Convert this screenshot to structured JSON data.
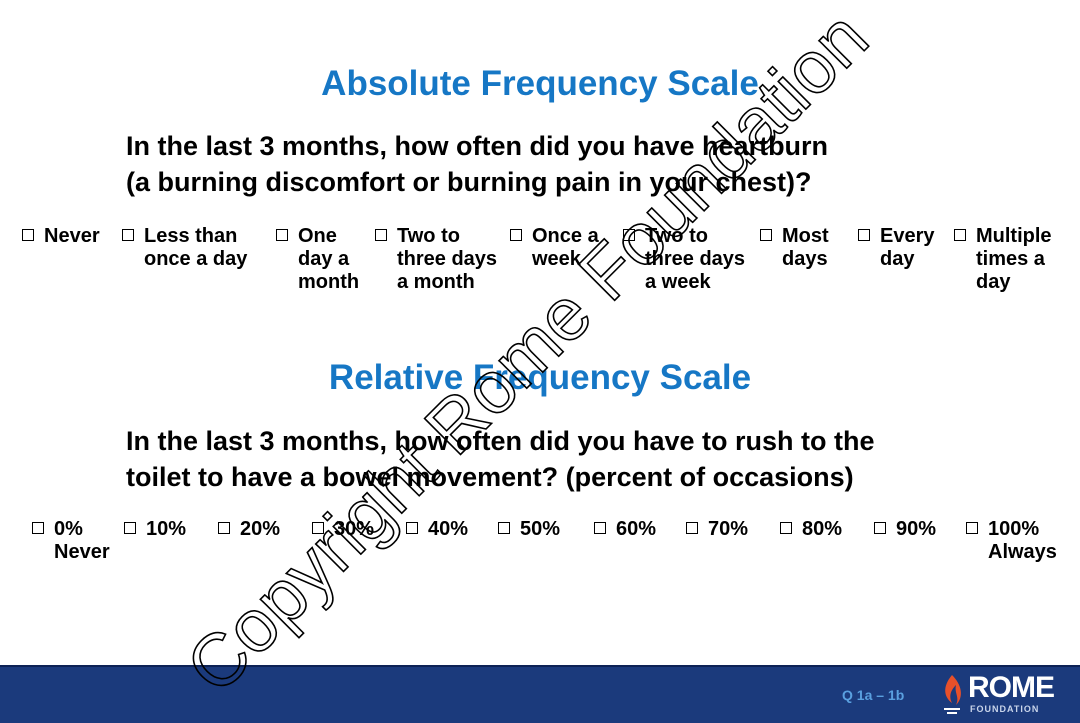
{
  "sections": [
    {
      "title": "Absolute Frequency Scale",
      "question": [
        "In the last 3 months, how often did you have heartburn",
        "(a burning discomfort or burning pain in your chest)?"
      ],
      "options": [
        [
          "Never"
        ],
        [
          "Less than",
          "once a day"
        ],
        [
          "One",
          "day a",
          "month"
        ],
        [
          "Two to",
          "three days",
          "a month"
        ],
        [
          "Once a",
          "week"
        ],
        [
          "Two to",
          "three days",
          "a week"
        ],
        [
          "Most",
          "days"
        ],
        [
          "Every",
          "day"
        ],
        [
          "Multiple",
          "times a",
          "day"
        ]
      ]
    },
    {
      "title": "Relative Frequency Scale",
      "question": [
        "In the last 3 months, how often did you have to rush to the",
        "toilet to have a bowel movement? (percent of occasions)"
      ],
      "options": [
        [
          "0%",
          "Never"
        ],
        [
          "10%"
        ],
        [
          "20%"
        ],
        [
          "30%"
        ],
        [
          "40%"
        ],
        [
          "50%"
        ],
        [
          "60%"
        ],
        [
          "70%"
        ],
        [
          "80%"
        ],
        [
          "90%"
        ],
        [
          "100%",
          "Always"
        ]
      ]
    }
  ],
  "watermark": "Copyright Rome Foundation",
  "footer": {
    "slide_ref": "Q 1a – 1b",
    "logo": {
      "name": "ROME",
      "sub": "FOUNDATION"
    }
  }
}
